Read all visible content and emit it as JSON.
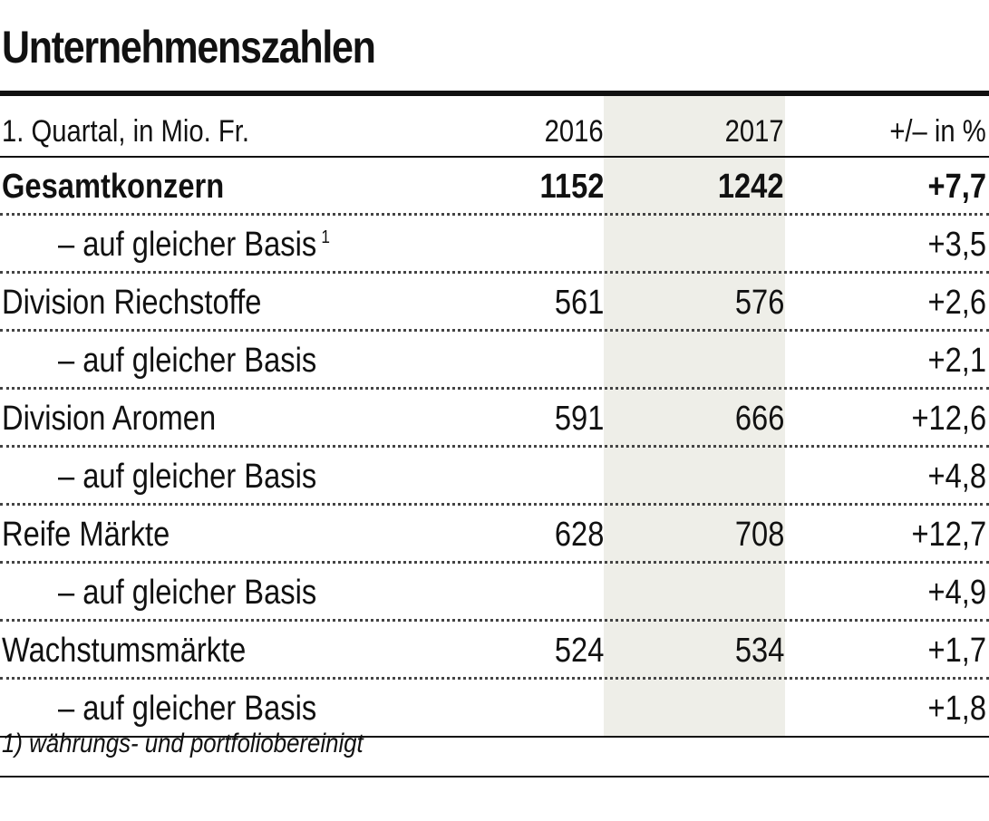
{
  "title": "Unternehmenszahlen",
  "header": {
    "label": "1. Quartal, in Mio. Fr.",
    "col_2016": "2016",
    "col_2017": "2017",
    "col_diff": "+/– in %"
  },
  "rows": [
    {
      "label": "Gesamtkonzern",
      "v2016": "1152",
      "v2017": "1242",
      "diff": "+7,7"
    },
    {
      "label": "– auf gleicher Basis",
      "sup": "1",
      "v2016": "",
      "v2017": "",
      "diff": "+3,5"
    },
    {
      "label": "Division Riechstoffe",
      "v2016": "561",
      "v2017": "576",
      "diff": "+2,6"
    },
    {
      "label": "– auf gleicher Basis",
      "v2016": "",
      "v2017": "",
      "diff": "+2,1"
    },
    {
      "label": "Division Aromen",
      "v2016": "591",
      "v2017": "666",
      "diff": "+12,6"
    },
    {
      "label": "– auf gleicher Basis",
      "v2016": "",
      "v2017": "",
      "diff": "+4,8"
    },
    {
      "label": "Reife Märkte",
      "v2016": "628",
      "v2017": "708",
      "diff": "+12,7"
    },
    {
      "label": "– auf gleicher Basis",
      "v2016": "",
      "v2017": "",
      "diff": "+4,9"
    },
    {
      "label": "Wachstumsmärkte",
      "v2016": "524",
      "v2017": "534",
      "diff": "+1,7"
    },
    {
      "label": "– auf gleicher Basis",
      "v2016": "",
      "v2017": "",
      "diff": "+1,8"
    }
  ],
  "footnote": "1) währungs- und portfoliobereinigt",
  "colors": {
    "text": "#111111",
    "column_highlight": "#eeeee8"
  }
}
